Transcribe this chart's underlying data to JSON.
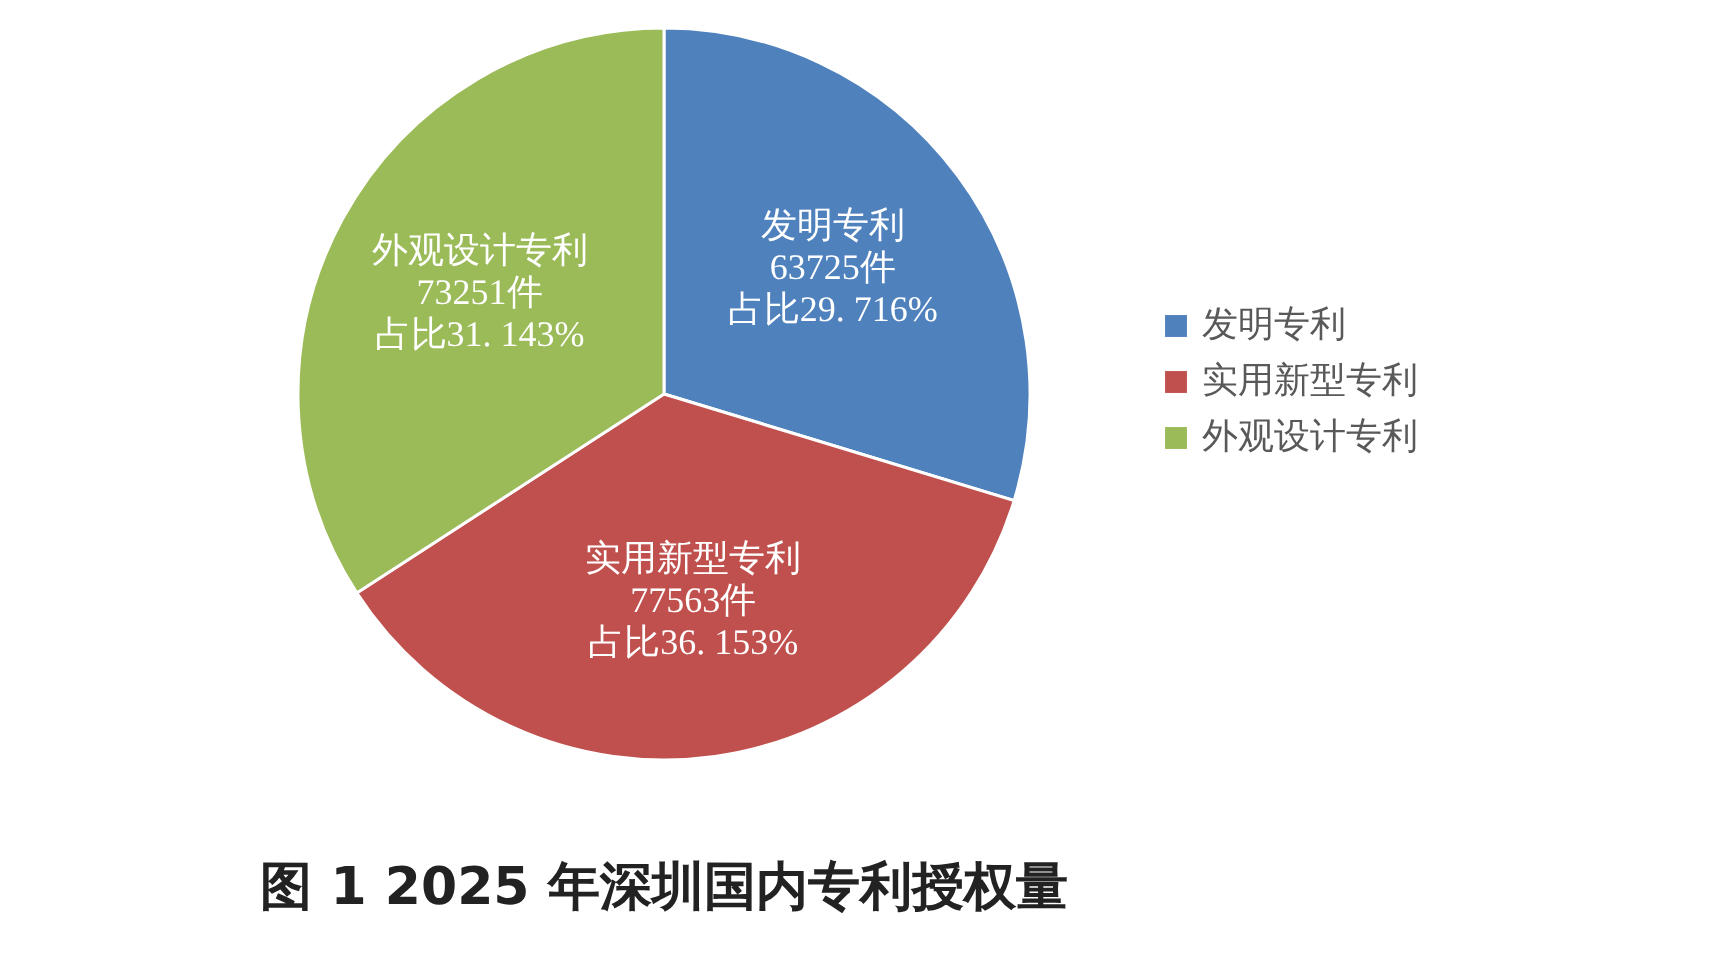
{
  "chart_data": {
    "type": "pie",
    "title": "图 1  2025 年深圳国内专利授权量",
    "categories": [
      "发明专利",
      "实用新型专利",
      "外观设计专利"
    ],
    "values": [
      63725,
      77563,
      73251
    ],
    "colors": [
      "#4f81bd",
      "#c0504d",
      "#9bbb59"
    ],
    "value_labels": [
      "63725件",
      "77563件",
      "73251件"
    ],
    "annotations": [
      "占比29. 716%",
      "占比36. 153%",
      "占比31. 143%"
    ],
    "legend": "right"
  }
}
